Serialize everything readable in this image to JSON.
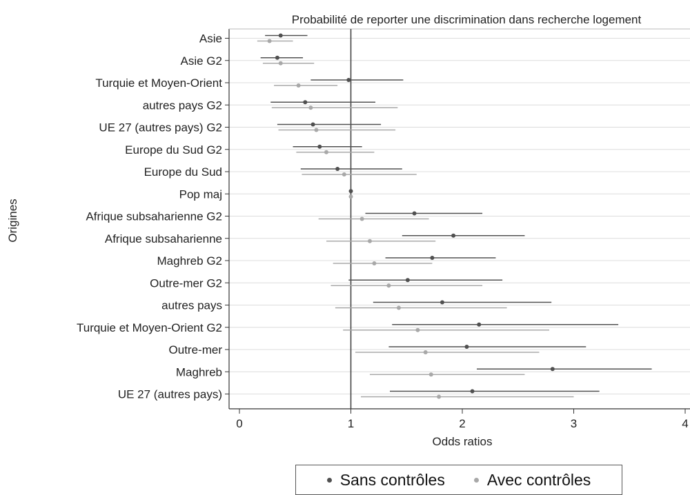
{
  "chart_data": {
    "type": "scatter",
    "title": "Probabilité de reporter une discrimination dans recherche logement",
    "xlabel": "Odds ratios",
    "ylabel": "Origines",
    "xlim": [
      0,
      4
    ],
    "x_ticks": [
      "0",
      "1",
      "2",
      "3",
      "4"
    ],
    "reference_line": 1,
    "grid": "horizontal",
    "legend_position": "bottom",
    "categories": [
      "Asie",
      "Asie G2",
      "Turquie et Moyen-Orient",
      "autres pays G2",
      "UE 27 (autres pays) G2",
      "Europe du Sud G2",
      "Europe du Sud",
      "Pop maj",
      "Afrique subsaharienne G2",
      "Afrique subsaharienne",
      "Maghreb G2",
      "Outre-mer G2",
      "autres pays",
      "Turquie et Moyen-Orient G2",
      "Outre-mer",
      "Maghreb",
      "UE 27 (autres pays)"
    ],
    "series": [
      {
        "name": "Sans contrôles",
        "color": "#505050",
        "estimates": [
          0.37,
          0.34,
          0.98,
          0.59,
          0.66,
          0.72,
          0.88,
          1.0,
          1.57,
          1.92,
          1.73,
          1.51,
          1.82,
          2.15,
          2.04,
          2.81,
          2.09
        ],
        "ci_low": [
          0.23,
          0.19,
          0.64,
          0.28,
          0.34,
          0.48,
          0.55,
          1.0,
          1.13,
          1.46,
          1.31,
          0.98,
          1.2,
          1.37,
          1.34,
          2.13,
          1.35
        ],
        "ci_high": [
          0.61,
          0.57,
          1.47,
          1.22,
          1.27,
          1.1,
          1.46,
          1.0,
          2.18,
          2.56,
          2.3,
          2.36,
          2.8,
          3.4,
          3.11,
          3.7,
          3.23
        ]
      },
      {
        "name": "Avec contrôles",
        "color": "#a8a8a8",
        "estimates": [
          0.27,
          0.37,
          0.53,
          0.64,
          0.69,
          0.78,
          0.94,
          1.0,
          1.1,
          1.17,
          1.21,
          1.34,
          1.43,
          1.6,
          1.67,
          1.72,
          1.79
        ],
        "ci_low": [
          0.16,
          0.21,
          0.31,
          0.29,
          0.35,
          0.51,
          0.56,
          1.0,
          0.71,
          0.78,
          0.84,
          0.82,
          0.86,
          0.93,
          1.04,
          1.17,
          1.09
        ],
        "ci_high": [
          0.48,
          0.67,
          0.88,
          1.42,
          1.4,
          1.21,
          1.59,
          1.0,
          1.7,
          1.76,
          1.73,
          2.18,
          2.4,
          2.78,
          2.69,
          2.56,
          3.0
        ]
      }
    ]
  }
}
